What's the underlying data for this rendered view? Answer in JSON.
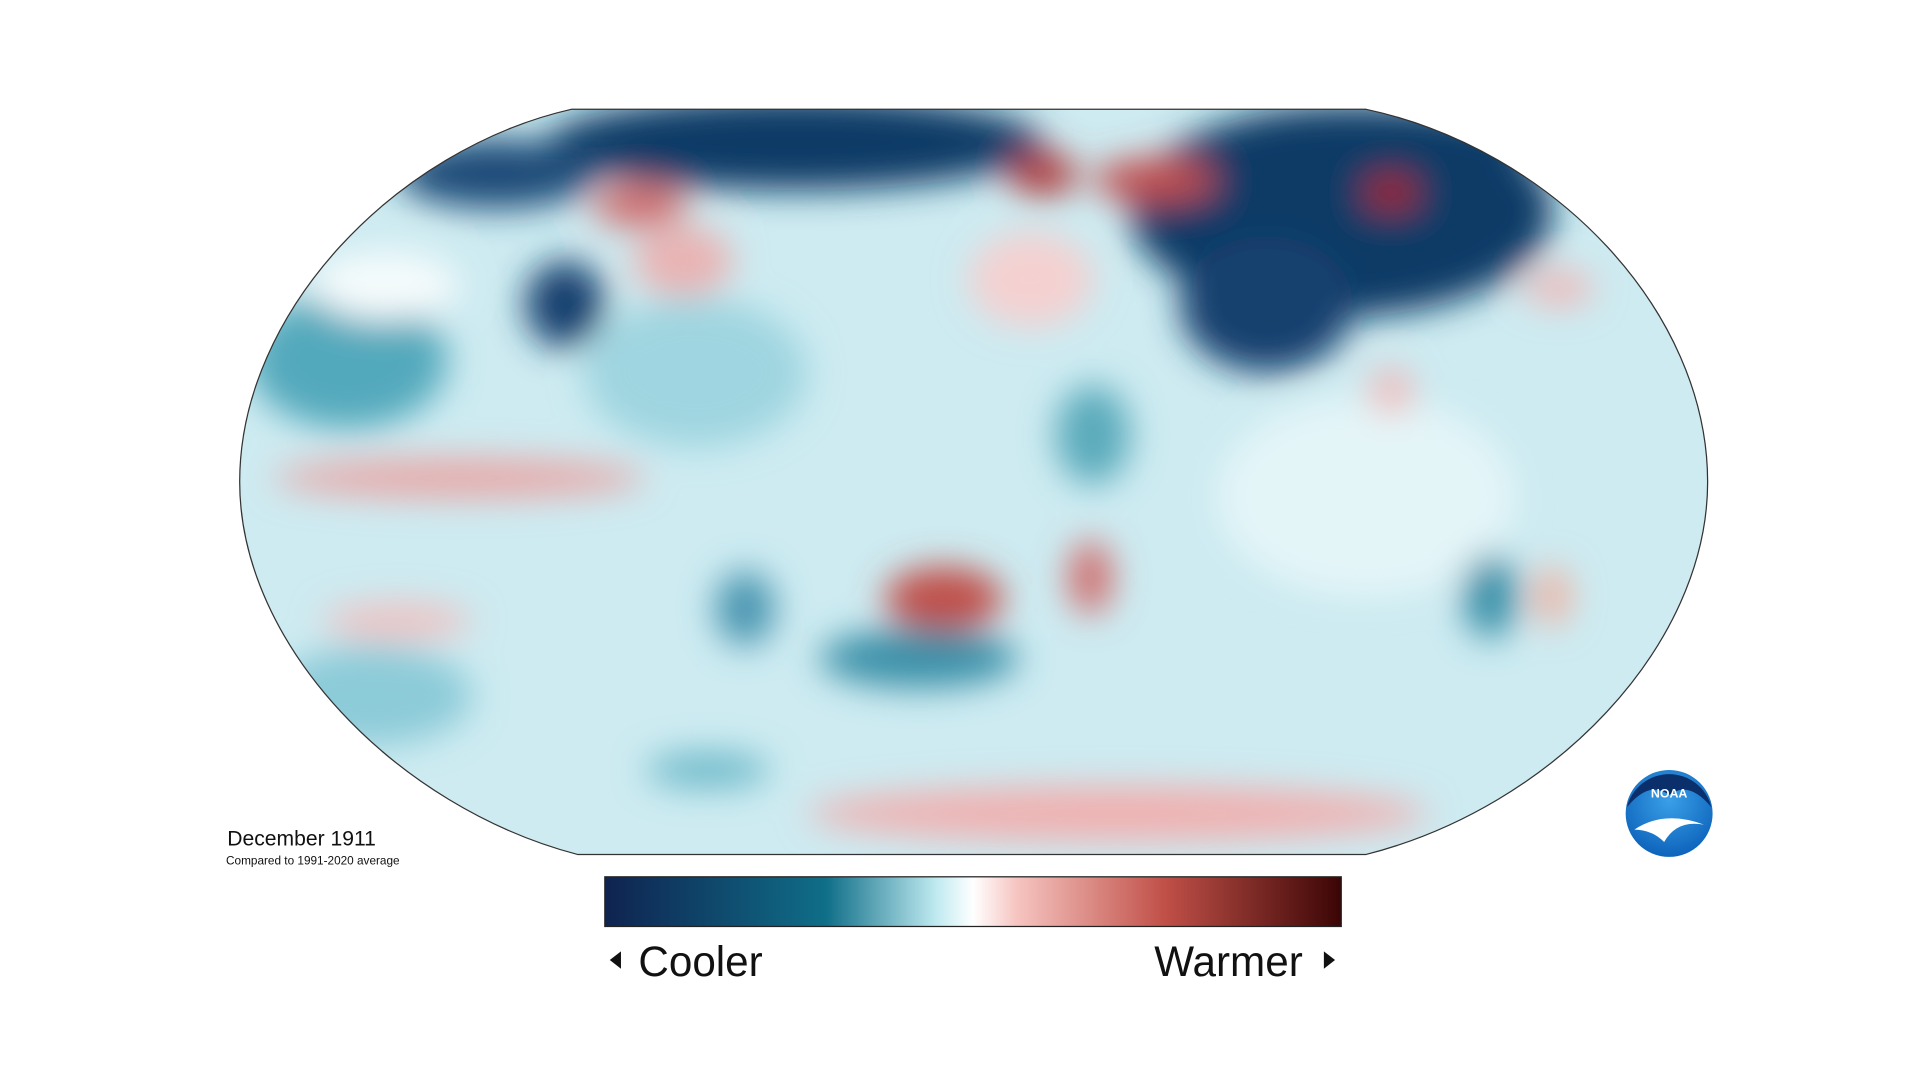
{
  "caption": {
    "title": "December 1911",
    "subtitle": "Compared to 1991-2020 average"
  },
  "legend": {
    "low": "Cooler",
    "high": "Warmer"
  },
  "logo": {
    "text": "NOAA"
  }
}
